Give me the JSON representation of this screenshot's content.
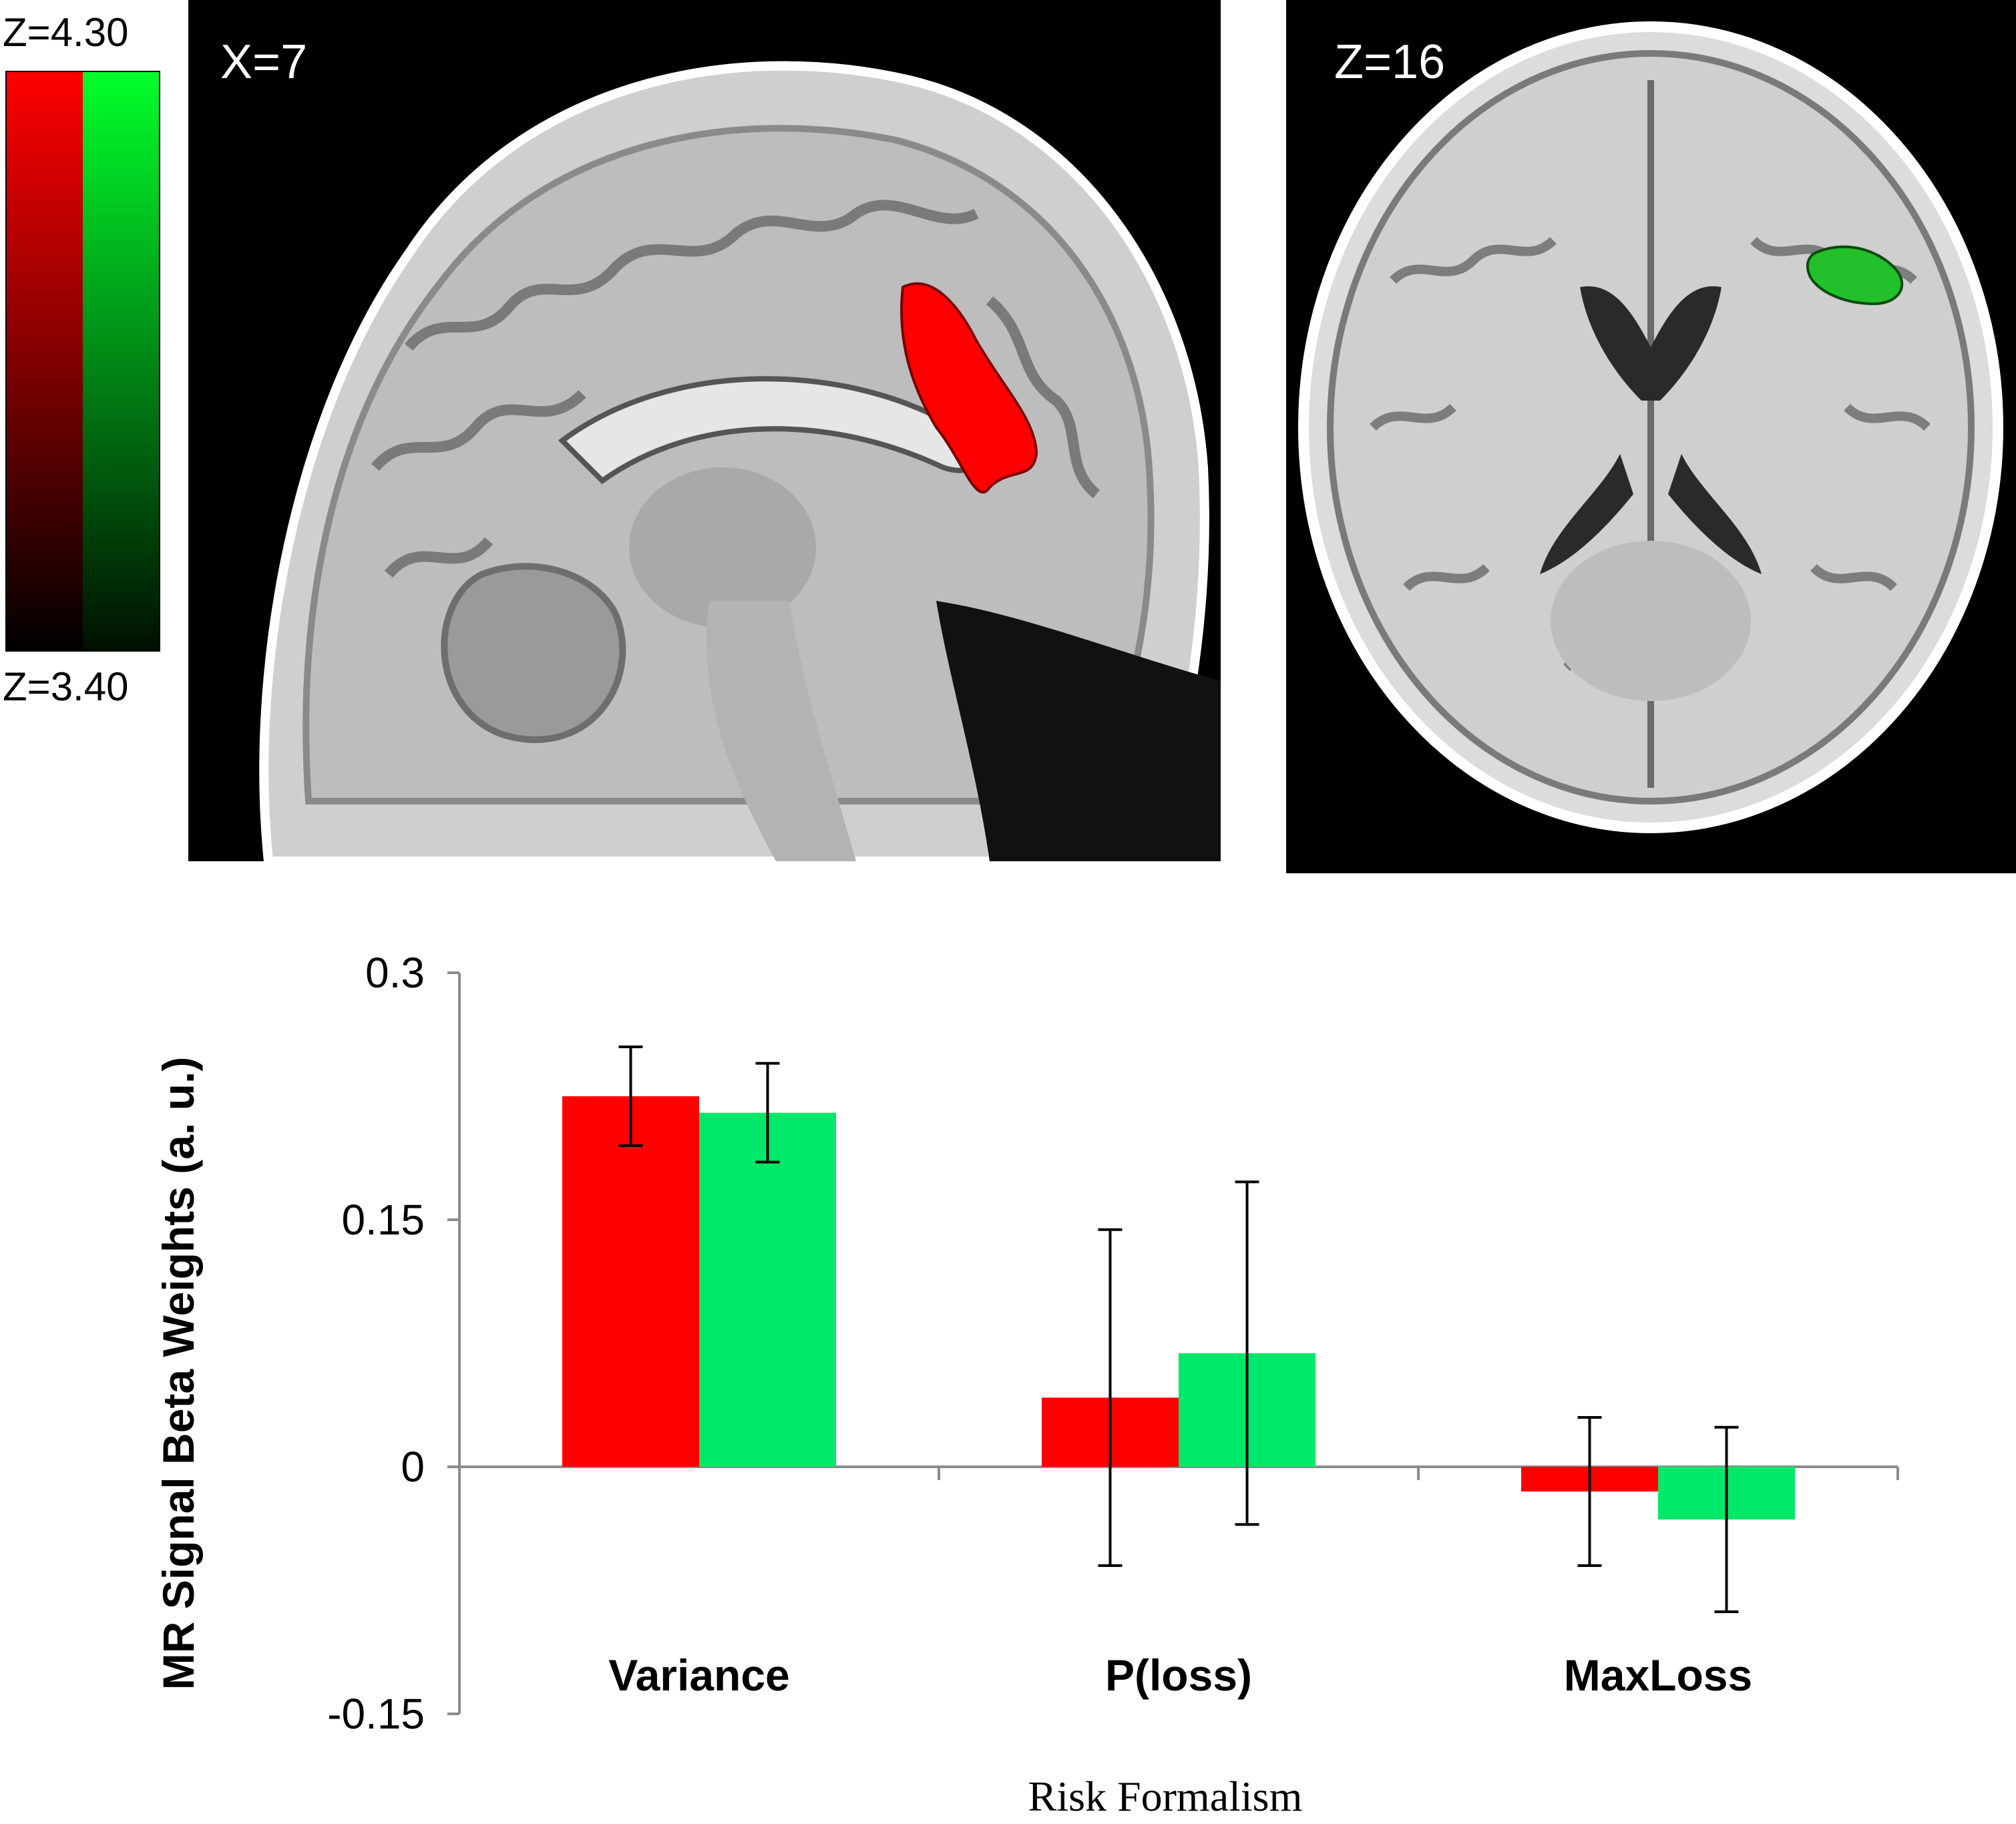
{
  "colorbar": {
    "top_label": "Z=4.30",
    "bottom_label": "Z=3.40",
    "colors": [
      "#ff0000",
      "#00ff2a"
    ]
  },
  "panels": {
    "sagittal_label": "X=7",
    "axial_label": "Z=16",
    "sagittal_blob_color": "#ff0000",
    "axial_blob_color": "#22c02a"
  },
  "chart_data": {
    "type": "bar",
    "categories": [
      "Variance",
      "P(loss)",
      "MaxLoss"
    ],
    "series": [
      {
        "values": [
          0.225,
          0.042,
          -0.015
        ],
        "errors": [
          0.03,
          0.102,
          0.045
        ],
        "color": "#ff0000"
      },
      {
        "values": [
          0.215,
          0.069,
          -0.032
        ],
        "errors": [
          0.03,
          0.104,
          0.056
        ],
        "color": "#00e86a"
      }
    ],
    "ylabel": "MR Signal Beta Weights (a. u.)",
    "xlabel": "Risk Formalism",
    "ylim": [
      -0.15,
      0.3
    ],
    "yticks": [
      "0.3",
      "0.15",
      "0",
      "-0.15"
    ],
    "ytick_values": [
      0.3,
      0.15,
      0,
      -0.15
    ],
    "grid": false,
    "legend": "none"
  }
}
